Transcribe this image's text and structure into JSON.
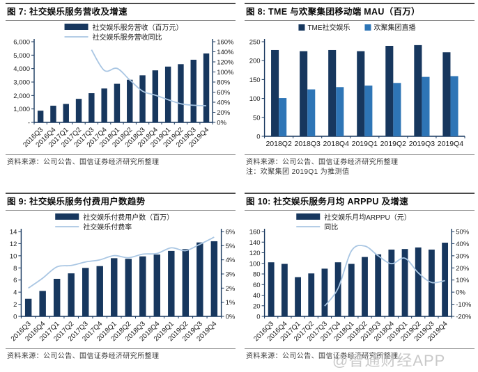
{
  "colors": {
    "bar_dark": "#17375E",
    "bar_blue": "#2E75B6",
    "line_light": "#A9C6E3",
    "axis": "#17375E",
    "tick_text": "#1a1a1a",
    "watermark": "#c4c4c4"
  },
  "watermark": {
    "text": "@智通财经APP"
  },
  "panels": [
    {
      "title": "图 7:  社交娱乐服务营收及增速",
      "source": "资料来源：公司公告、国信证券经济研究所整理",
      "note": ""
    },
    {
      "title": "图 8:  TME 与欢聚集团移动端 MAU（百万）",
      "source": "资料来源：公司公告、国信证券经济研究所整理",
      "note": "注：欢聚集团 2019Q1 为推测值"
    },
    {
      "title": "图 9:  社交娱乐服务付费用户数趋势",
      "source": "资料来源：公司公告、国信证券经济研究所整理",
      "note": ""
    },
    {
      "title": "图 10:  社交娱乐服务月均 ARPPU 及增速",
      "source": "资料来源：公司公告、国信证券经济研究所整理",
      "note": ""
    }
  ],
  "chart_data": [
    {
      "type": "bar+line",
      "title": "社交娱乐服务营收及增速",
      "categories": [
        "2016Q3",
        "2016Q4",
        "2017Q1",
        "2017Q2",
        "2017Q3",
        "2017Q4",
        "2018Q1",
        "2018Q2",
        "2018Q3",
        "2018Q4",
        "2019Q1",
        "2019Q2",
        "2019Q3",
        "2019Q4"
      ],
      "series": [
        {
          "name": "社交娱乐服务营收（百万元）",
          "kind": "bar",
          "axis": "left",
          "color": "#17375E",
          "values": [
            870,
            1240,
            1370,
            1750,
            2170,
            2520,
            2870,
            3170,
            3500,
            3870,
            4150,
            4330,
            4660,
            5130
          ]
        },
        {
          "name": "社交娱乐服务营收同比",
          "kind": "line",
          "axis": "right",
          "color": "#A9C6E3",
          "values": [
            null,
            null,
            null,
            null,
            144,
            103,
            107,
            84,
            62,
            54,
            45,
            37,
            34,
            33
          ]
        }
      ],
      "left_axis": {
        "min": 0,
        "max": 6000,
        "ticks": [
          "-",
          "1,000",
          "2,000",
          "3,000",
          "4,000",
          "5,000",
          "6,000"
        ]
      },
      "right_axis": {
        "min": 0,
        "max": 160,
        "ticks": [
          "0%",
          "20%",
          "40%",
          "60%",
          "80%",
          "100%",
          "120%",
          "140%",
          "160%"
        ]
      },
      "x_rotate": true,
      "legend": {
        "layout": "stack"
      },
      "grid": false
    },
    {
      "type": "bar",
      "title": "TME 与欢聚集团移动端 MAU（百万）",
      "categories": [
        "2018Q2",
        "2018Q3",
        "2018Q4",
        "2019Q1",
        "2019Q2",
        "2019Q3",
        "2019Q4"
      ],
      "series": [
        {
          "name": "TME社交娱乐",
          "kind": "bar",
          "axis": "left",
          "color": "#17375E",
          "values": [
            228,
            225,
            228,
            225,
            239,
            241,
            222
          ]
        },
        {
          "name": "欢聚集团直播",
          "kind": "bar",
          "axis": "left",
          "color": "#2E75B6",
          "values": [
            101,
            124,
            130,
            134,
            141,
            157,
            159
          ]
        }
      ],
      "left_axis": {
        "min": 0,
        "max": 250,
        "ticks": [
          "0",
          "50",
          "100",
          "150",
          "200",
          "250"
        ]
      },
      "right_axis": null,
      "x_rotate": false,
      "legend": {
        "layout": "row"
      },
      "grid": false
    },
    {
      "type": "bar+line",
      "title": "社交娱乐服务付费用户数趋势",
      "categories": [
        "2016Q3",
        "2016Q4",
        "2017Q1",
        "2017Q2",
        "2017Q3",
        "2017Q4",
        "2018Q1",
        "2018Q2",
        "2018Q3",
        "2018Q4",
        "2019Q1",
        "2019Q2",
        "2019Q3",
        "2019Q4"
      ],
      "series": [
        {
          "name": "社交娱乐付费用户数（百万）",
          "kind": "bar",
          "axis": "left",
          "color": "#17375E",
          "values": [
            2.9,
            4.2,
            6.2,
            7.1,
            8.0,
            8.3,
            9.6,
            9.5,
            9.9,
            10.2,
            10.8,
            11.1,
            12.2,
            12.4
          ]
        },
        {
          "name": "社交娱乐付费率",
          "kind": "line",
          "axis": "right",
          "color": "#A9C6E3",
          "values": [
            2.0,
            2.7,
            3.5,
            3.6,
            3.85,
            4.0,
            4.3,
            4.15,
            4.4,
            4.45,
            4.85,
            4.65,
            5.1,
            5.6
          ]
        }
      ],
      "left_axis": {
        "min": 0,
        "max": 14,
        "ticks": [
          "0",
          "2",
          "4",
          "6",
          "8",
          "10",
          "12",
          "14"
        ]
      },
      "right_axis": {
        "min": 0,
        "max": 6,
        "ticks": [
          "0%",
          "1%",
          "2%",
          "3%",
          "4%",
          "5%",
          "6%"
        ]
      },
      "x_rotate": true,
      "legend": {
        "layout": "stack"
      },
      "grid": false
    },
    {
      "type": "bar+line",
      "title": "社交娱乐服务月均 ARPPU 及增速",
      "categories": [
        "2016Q3",
        "2016Q4",
        "2017Q1",
        "2017Q2",
        "2017Q3",
        "2017Q4",
        "2018Q1",
        "2018Q2",
        "2018Q3",
        "2018Q4",
        "2019Q1",
        "2019Q2",
        "2019Q3",
        "2019Q4"
      ],
      "series": [
        {
          "name": "社交娱乐月均ARPPU（元）",
          "kind": "bar",
          "axis": "left",
          "color": "#17375E",
          "values": [
            102,
            99,
            74,
            81,
            90,
            102,
            99,
            112,
            117,
            126,
            127,
            130,
            126,
            139
          ]
        },
        {
          "name": "同比",
          "kind": "line",
          "axis": "right",
          "color": "#A9C6E3",
          "values": [
            null,
            null,
            null,
            null,
            -11.5,
            3,
            34,
            38,
            30,
            23.5,
            28,
            16,
            8,
            9.5
          ]
        }
      ],
      "left_axis": {
        "min": 0,
        "max": 160,
        "ticks": [
          "0",
          "20",
          "40",
          "60",
          "80",
          "100",
          "120",
          "140",
          "160"
        ]
      },
      "right_axis": {
        "min": -20,
        "max": 50,
        "ticks": [
          "-20%",
          "-10%",
          "0%",
          "10%",
          "20%",
          "30%",
          "40%",
          "50%"
        ]
      },
      "x_rotate": true,
      "legend": {
        "layout": "stack"
      },
      "grid": false
    }
  ]
}
